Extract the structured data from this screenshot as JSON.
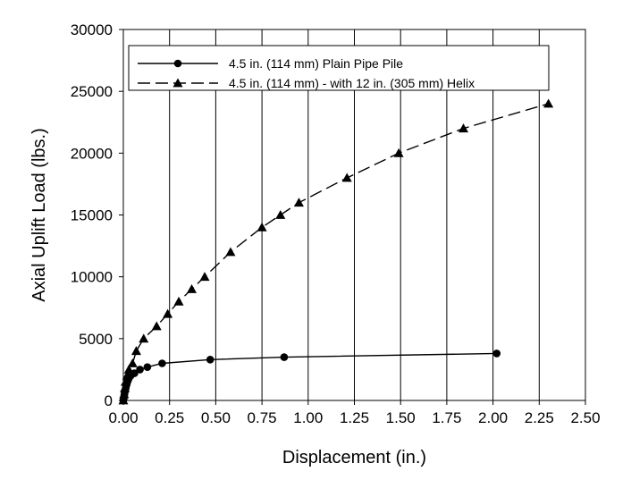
{
  "chart_data": {
    "type": "scatter",
    "title": "",
    "xlabel": "Displacement (in.)",
    "ylabel": "Axial Uplift Load (lbs.)",
    "xlim": [
      0,
      2.5
    ],
    "ylim": [
      0,
      30000
    ],
    "x_ticks": [
      0,
      0.25,
      0.5,
      0.75,
      1.0,
      1.25,
      1.5,
      1.75,
      2.0,
      2.25,
      2.5
    ],
    "x_tick_labels": [
      "0.00",
      "0.25",
      "0.50",
      "0.75",
      "1.00",
      "1.25",
      "1.50",
      "1.75",
      "2.00",
      "2.25",
      "2.50"
    ],
    "y_ticks": [
      0,
      5000,
      10000,
      15000,
      20000,
      25000,
      30000
    ],
    "y_tick_labels": [
      "0",
      "5000",
      "10000",
      "15000",
      "20000",
      "25000",
      "30000"
    ],
    "grid": "vertical",
    "legend_position": "top",
    "series": [
      {
        "name": "4.5 in. (114 mm) Plain Pipe Pile",
        "marker": "circle",
        "line_style": "solid",
        "color": "#000000",
        "x": [
          0.0,
          0.003,
          0.005,
          0.007,
          0.01,
          0.013,
          0.016,
          0.02,
          0.025,
          0.03,
          0.04,
          0.06,
          0.09,
          0.13,
          0.21,
          0.47,
          0.87,
          2.02
        ],
        "y": [
          0,
          200,
          400,
          600,
          800,
          1000,
          1200,
          1400,
          1600,
          1800,
          2000,
          2200,
          2500,
          2700,
          3000,
          3300,
          3500,
          3800
        ]
      },
      {
        "name": "4.5 in. (114 mm) - with 12 in. (305 mm) Helix",
        "marker": "triangle",
        "line_style": "dashed",
        "color": "#000000",
        "x": [
          0.0,
          0.004,
          0.008,
          0.012,
          0.02,
          0.03,
          0.05,
          0.07,
          0.11,
          0.18,
          0.24,
          0.3,
          0.37,
          0.44,
          0.58,
          0.75,
          0.85,
          0.95,
          1.21,
          1.49,
          1.84,
          2.3
        ],
        "y": [
          0,
          500,
          1000,
          1500,
          2000,
          2500,
          3000,
          4000,
          5000,
          6000,
          7000,
          8000,
          9000,
          10000,
          12000,
          14000,
          15000,
          16000,
          18000,
          20000,
          22000,
          24000
        ]
      }
    ]
  }
}
